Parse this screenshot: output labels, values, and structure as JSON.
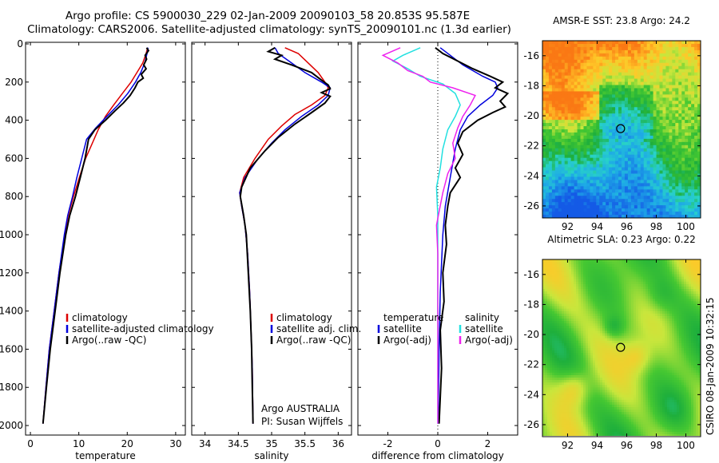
{
  "figure": {
    "title_line1": "Argo profile: CS 5900030_229 02-Jan-2009 20090103_58 20.853S 95.587E",
    "title_line2": "Climatology: CARS2006. Satellite-adjusted climatology: synTS_20090101.nc (1.3d earlier)",
    "side_credit": "CSIRO 08-Jan-2009 10:32:15",
    "colors": {
      "climatology": "#dd0000",
      "satellite": "#0000dd",
      "argo": "#000000",
      "satellite_sal": "#22e0e0",
      "argo_sal": "#ee22ee"
    }
  },
  "chart_data": [
    {
      "type": "line",
      "id": "temperature",
      "xlabel": "temperature",
      "ylabel": "",
      "xlim": [
        -1,
        32
      ],
      "ylim": [
        2050,
        0
      ],
      "xticks": [
        0,
        10,
        20,
        30
      ],
      "yticks": [
        0,
        200,
        400,
        600,
        800,
        1000,
        1200,
        1400,
        1600,
        1800,
        2000
      ],
      "legend": [
        "climatology",
        "satellite-adjusted climatology",
        "Argo(..raw -QC)"
      ],
      "series": [
        {
          "name": "climatology",
          "color": "#dd0000",
          "points": [
            [
              24.2,
              20
            ],
            [
              23.9,
              50
            ],
            [
              23.2,
              100
            ],
            [
              22,
              150
            ],
            [
              20.8,
              200
            ],
            [
              19,
              260
            ],
            [
              17.2,
              320
            ],
            [
              15.5,
              380
            ],
            [
              14,
              450
            ],
            [
              12.8,
              520
            ],
            [
              11.4,
              600
            ],
            [
              10.1,
              700
            ],
            [
              8.9,
              800
            ],
            [
              7.8,
              900
            ],
            [
              7.1,
              1000
            ],
            [
              5.9,
              1200
            ],
            [
              4.9,
              1400
            ],
            [
              3.9,
              1600
            ],
            [
              3.2,
              1800
            ],
            [
              2.6,
              1990
            ]
          ]
        },
        {
          "name": "satellite-adjusted climatology",
          "color": "#0000dd",
          "points": [
            [
              24.3,
              20
            ],
            [
              24.1,
              50
            ],
            [
              23.6,
              100
            ],
            [
              22.8,
              150
            ],
            [
              21.7,
              200
            ],
            [
              20.1,
              260
            ],
            [
              18.1,
              320
            ],
            [
              15.8,
              380
            ],
            [
              13.5,
              440
            ],
            [
              11.6,
              500
            ],
            [
              10.6,
              600
            ],
            [
              9.6,
              700
            ],
            [
              8.7,
              800
            ],
            [
              7.7,
              900
            ],
            [
              7,
              1000
            ],
            [
              5.9,
              1200
            ],
            [
              4.9,
              1400
            ],
            [
              3.9,
              1600
            ],
            [
              3.2,
              1800
            ],
            [
              2.6,
              1990
            ]
          ]
        },
        {
          "name": "Argo(..raw -QC)",
          "color": "#000000",
          "points": [
            [
              24,
              20
            ],
            [
              24.4,
              35
            ],
            [
              23.7,
              60
            ],
            [
              24,
              80
            ],
            [
              23.4,
              110
            ],
            [
              23.9,
              130
            ],
            [
              22.9,
              160
            ],
            [
              23.3,
              180
            ],
            [
              22.2,
              200
            ],
            [
              21.6,
              230
            ],
            [
              20.6,
              270
            ],
            [
              19.2,
              310
            ],
            [
              17.5,
              350
            ],
            [
              15.5,
              400
            ],
            [
              13.3,
              450
            ],
            [
              12,
              500
            ],
            [
              11.3,
              600
            ],
            [
              10.3,
              700
            ],
            [
              9.3,
              800
            ],
            [
              8.1,
              900
            ],
            [
              7.3,
              1000
            ],
            [
              6.1,
              1200
            ],
            [
              5.1,
              1400
            ],
            [
              4.1,
              1600
            ],
            [
              3.3,
              1800
            ],
            [
              2.6,
              1990
            ]
          ]
        }
      ]
    },
    {
      "type": "line",
      "id": "salinity",
      "xlabel": "salinity",
      "ylabel": "",
      "xlim": [
        33.8,
        36.2
      ],
      "ylim": [
        2050,
        0
      ],
      "xticks": [
        34,
        34.5,
        35,
        35.5,
        36
      ],
      "legend": [
        "climatology",
        "satellite adj. clim.",
        "Argo(..raw -QC)"
      ],
      "annotation": [
        "Argo AUSTRALIA",
        "PI: Susan Wijffels"
      ],
      "series": [
        {
          "name": "climatology",
          "color": "#dd0000",
          "points": [
            [
              35.2,
              20
            ],
            [
              35.4,
              50
            ],
            [
              35.55,
              100
            ],
            [
              35.7,
              150
            ],
            [
              35.8,
              200
            ],
            [
              35.85,
              230
            ],
            [
              35.8,
              270
            ],
            [
              35.6,
              320
            ],
            [
              35.35,
              370
            ],
            [
              35.15,
              430
            ],
            [
              34.95,
              500
            ],
            [
              34.75,
              600
            ],
            [
              34.58,
              700
            ],
            [
              34.52,
              780
            ],
            [
              34.55,
              850
            ],
            [
              34.6,
              950
            ],
            [
              34.64,
              1100
            ],
            [
              34.67,
              1300
            ],
            [
              34.69,
              1500
            ],
            [
              34.71,
              1700
            ],
            [
              34.72,
              1990
            ]
          ]
        },
        {
          "name": "satellite adj. clim.",
          "color": "#0000dd",
          "points": [
            [
              35.05,
              20
            ],
            [
              35.1,
              50
            ],
            [
              35.3,
              100
            ],
            [
              35.5,
              150
            ],
            [
              35.75,
              200
            ],
            [
              35.88,
              230
            ],
            [
              35.85,
              270
            ],
            [
              35.7,
              320
            ],
            [
              35.45,
              380
            ],
            [
              35.2,
              450
            ],
            [
              35,
              520
            ],
            [
              34.8,
              600
            ],
            [
              34.6,
              700
            ],
            [
              34.52,
              780
            ],
            [
              34.55,
              850
            ],
            [
              34.6,
              950
            ],
            [
              34.64,
              1100
            ],
            [
              34.67,
              1300
            ],
            [
              34.69,
              1500
            ],
            [
              34.71,
              1700
            ],
            [
              34.72,
              1990
            ]
          ]
        },
        {
          "name": "Argo(..raw -QC)",
          "color": "#000000",
          "points": [
            [
              35.05,
              20
            ],
            [
              34.95,
              40
            ],
            [
              35.15,
              60
            ],
            [
              35.05,
              80
            ],
            [
              35.3,
              110
            ],
            [
              35.6,
              150
            ],
            [
              35.75,
              190
            ],
            [
              35.85,
              215
            ],
            [
              35.88,
              235
            ],
            [
              35.75,
              255
            ],
            [
              35.88,
              275
            ],
            [
              35.8,
              310
            ],
            [
              35.6,
              360
            ],
            [
              35.35,
              420
            ],
            [
              35.1,
              490
            ],
            [
              34.9,
              560
            ],
            [
              34.68,
              650
            ],
            [
              34.55,
              750
            ],
            [
              34.53,
              800
            ],
            [
              34.58,
              900
            ],
            [
              34.62,
              1000
            ],
            [
              34.65,
              1200
            ],
            [
              34.68,
              1400
            ],
            [
              34.7,
              1600
            ],
            [
              34.71,
              1800
            ],
            [
              34.72,
              1990
            ]
          ]
        }
      ]
    },
    {
      "type": "line",
      "id": "difference",
      "xlabel": "difference from climatology",
      "ylabel": "",
      "xlim": [
        -3.2,
        3.2
      ],
      "ylim": [
        2050,
        0
      ],
      "xticks": [
        -2,
        0,
        2
      ],
      "legend": [
        "temperature",
        "satellite",
        "Argo(-adj)",
        "salinity",
        "satellite",
        "Argo(-adj)"
      ],
      "series": [
        {
          "name": "satellite",
          "quantity": "temperature",
          "color": "#0000dd",
          "points": [
            [
              0.1,
              20
            ],
            [
              0.5,
              60
            ],
            [
              1,
              110
            ],
            [
              1.8,
              170
            ],
            [
              2.3,
              200
            ],
            [
              2.4,
              230
            ],
            [
              2.2,
              270
            ],
            [
              1.7,
              320
            ],
            [
              1.2,
              380
            ],
            [
              0.9,
              450
            ],
            [
              0.7,
              550
            ],
            [
              0.5,
              700
            ],
            [
              0.3,
              850
            ],
            [
              0.2,
              1000
            ],
            [
              0.1,
              1300
            ],
            [
              0.05,
              1600
            ],
            [
              0.02,
              1990
            ]
          ]
        },
        {
          "name": "Argo(-adj)",
          "quantity": "temperature",
          "color": "#000000",
          "points": [
            [
              -0.1,
              20
            ],
            [
              0.2,
              50
            ],
            [
              0.8,
              90
            ],
            [
              1.4,
              130
            ],
            [
              2.1,
              170
            ],
            [
              2.6,
              200
            ],
            [
              2.3,
              230
            ],
            [
              2.8,
              260
            ],
            [
              2.5,
              300
            ],
            [
              2.7,
              330
            ],
            [
              2.2,
              360
            ],
            [
              1.6,
              400
            ],
            [
              1,
              460
            ],
            [
              0.8,
              520
            ],
            [
              1,
              580
            ],
            [
              0.7,
              650
            ],
            [
              0.9,
              700
            ],
            [
              0.5,
              780
            ],
            [
              0.4,
              850
            ],
            [
              0.3,
              950
            ],
            [
              0.35,
              1050
            ],
            [
              0.2,
              1200
            ],
            [
              0.25,
              1350
            ],
            [
              0.1,
              1500
            ],
            [
              0.15,
              1700
            ],
            [
              0.05,
              1990
            ]
          ]
        },
        {
          "name": "satellite",
          "quantity": "salinity",
          "color": "#22e0e0",
          "points": [
            [
              -0.7,
              20
            ],
            [
              -1.4,
              60
            ],
            [
              -1.8,
              90
            ],
            [
              -1.2,
              130
            ],
            [
              -0.7,
              170
            ],
            [
              0.2,
              210
            ],
            [
              0.7,
              260
            ],
            [
              0.9,
              320
            ],
            [
              0.7,
              380
            ],
            [
              0.4,
              450
            ],
            [
              0.2,
              550
            ],
            [
              0.1,
              650
            ],
            [
              -0.05,
              750
            ],
            [
              0,
              900
            ],
            [
              0,
              1100
            ],
            [
              0,
              1400
            ],
            [
              0,
              1990
            ]
          ]
        },
        {
          "name": "Argo(-adj)",
          "quantity": "salinity",
          "color": "#ee22ee",
          "points": [
            [
              -1.5,
              20
            ],
            [
              -2.2,
              60
            ],
            [
              -1.6,
              100
            ],
            [
              -1.2,
              140
            ],
            [
              -0.6,
              170
            ],
            [
              -0.3,
              200
            ],
            [
              0.6,
              230
            ],
            [
              1.5,
              270
            ],
            [
              1.3,
              320
            ],
            [
              1,
              380
            ],
            [
              0.8,
              440
            ],
            [
              0.6,
              520
            ],
            [
              0.7,
              600
            ],
            [
              0.4,
              680
            ],
            [
              0.2,
              780
            ],
            [
              0.05,
              880
            ],
            [
              -0.05,
              950
            ],
            [
              0,
              1100
            ],
            [
              0,
              1400
            ],
            [
              0,
              1990
            ]
          ]
        }
      ]
    },
    {
      "type": "heatmap",
      "id": "sst",
      "title": "AMSR-E SST: 23.8 Argo: 24.2",
      "xlim": [
        90.3,
        101
      ],
      "ylim": [
        -26.8,
        -15
      ],
      "xticks": [
        92,
        94,
        96,
        98,
        100
      ],
      "yticks": [
        -16,
        -18,
        -20,
        -22,
        -24,
        -26
      ],
      "marker": [
        95.587,
        -20.853
      ]
    },
    {
      "type": "heatmap",
      "id": "sla",
      "title": "Altimetric SLA: 0.23 Argo: 0.22",
      "xlim": [
        90.3,
        101
      ],
      "ylim": [
        -26.8,
        -15
      ],
      "xticks": [
        92,
        94,
        96,
        98,
        100
      ],
      "yticks": [
        -16,
        -18,
        -20,
        -22,
        -24,
        -26
      ],
      "marker": [
        95.587,
        -20.853
      ]
    }
  ]
}
